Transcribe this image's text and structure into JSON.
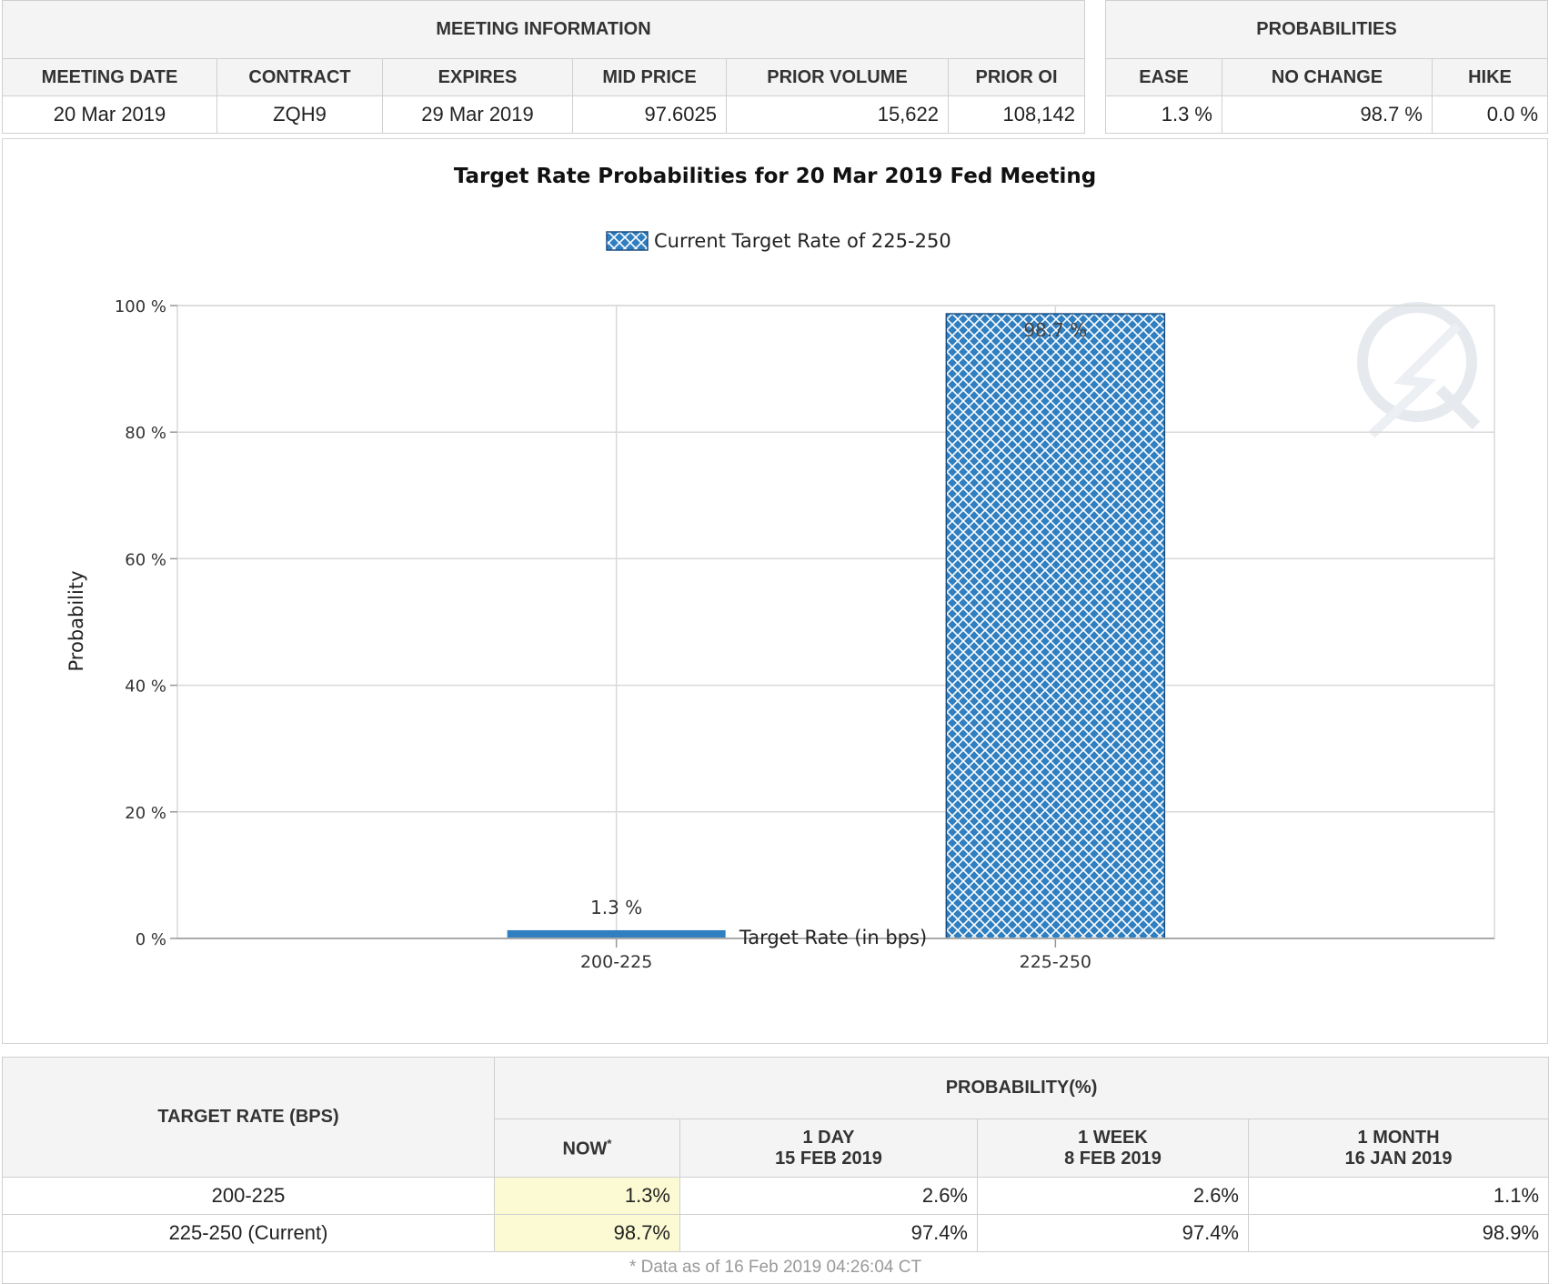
{
  "meeting_info": {
    "header": "MEETING INFORMATION",
    "columns": [
      "MEETING DATE",
      "CONTRACT",
      "EXPIRES",
      "MID PRICE",
      "PRIOR VOLUME",
      "PRIOR OI"
    ],
    "row": [
      "20 Mar 2019",
      "ZQH9",
      "29 Mar 2019",
      "97.6025",
      "15,622",
      "108,142"
    ]
  },
  "probabilities": {
    "header": "PROBABILITIES",
    "columns": [
      "EASE",
      "NO CHANGE",
      "HIKE"
    ],
    "row": [
      "1.3 %",
      "98.7 %",
      "0.0 %"
    ]
  },
  "chart_data": {
    "type": "bar",
    "title": "Target Rate Probabilities for 20 Mar 2019 Fed Meeting",
    "legend": "Current Target Rate of 225-250",
    "legend_position": "top-center",
    "xlabel": "Target Rate (in bps)",
    "ylabel": "Probability",
    "categories": [
      "200-225",
      "225-250"
    ],
    "values": [
      1.3,
      98.7
    ],
    "value_labels": [
      "1.3 %",
      "98.7 %"
    ],
    "current_category": "225-250",
    "ylim": [
      0,
      100
    ],
    "yticks": [
      0,
      20,
      40,
      60,
      80,
      100
    ],
    "ytick_labels": [
      "0 %",
      "20 %",
      "40 %",
      "60 %",
      "80 %",
      "100 %"
    ],
    "grid": true,
    "colors": {
      "bar": "#2f7fc1",
      "hatch": "#ffffff",
      "grid": "#d9d9d9"
    }
  },
  "history": {
    "row_header": "TARGET RATE (BPS)",
    "group_header": "PROBABILITY(%)",
    "columns": [
      {
        "line1": "NOW",
        "line2": "",
        "note": "*"
      },
      {
        "line1": "1 DAY",
        "line2": "15 FEB 2019",
        "note": ""
      },
      {
        "line1": "1 WEEK",
        "line2": "8 FEB 2019",
        "note": ""
      },
      {
        "line1": "1 MONTH",
        "line2": "16 JAN 2019",
        "note": ""
      }
    ],
    "rows": [
      {
        "rate": "200-225",
        "values": [
          "1.3%",
          "2.6%",
          "2.6%",
          "1.1%"
        ]
      },
      {
        "rate": "225-250 (Current)",
        "values": [
          "98.7%",
          "97.4%",
          "97.4%",
          "98.9%"
        ]
      }
    ],
    "footnote": "* Data as of 16 Feb 2019 04:26:04 CT"
  }
}
